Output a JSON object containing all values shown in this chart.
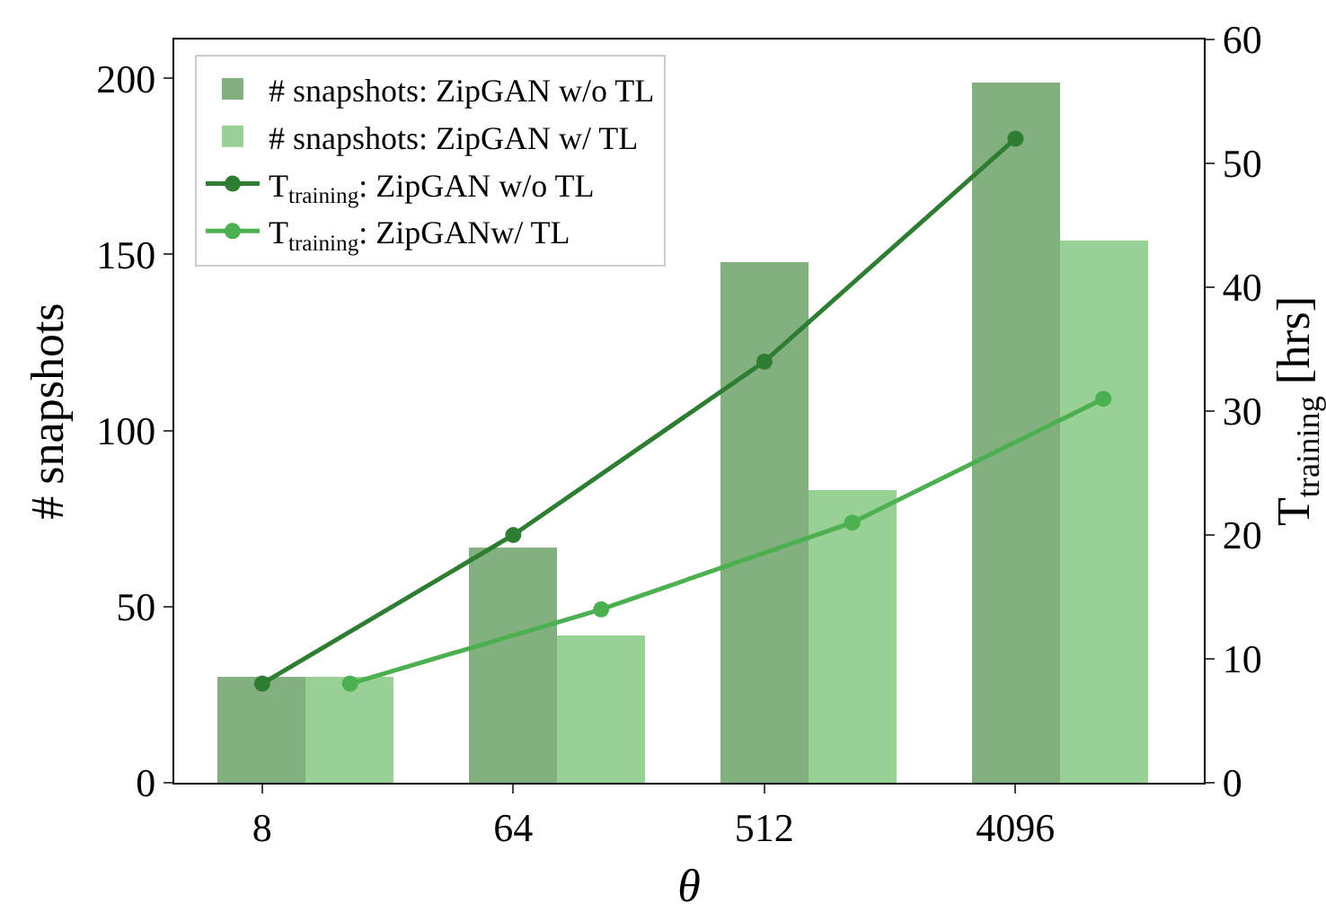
{
  "chart_data": {
    "type": "bar",
    "xlabel": "θ",
    "ylabel": "# snapshots",
    "y2label": "T$_{training}$ [hrs]",
    "categories": [
      "8",
      "64",
      "512",
      "4096"
    ],
    "series": [
      {
        "name": "# snapshots: ZipGAN w/o TL",
        "color": "#82b07f",
        "values": [
          30,
          67,
          148,
          199
        ]
      },
      {
        "name": "# snapshots: ZipGAN w/ TL",
        "color": "#98d095",
        "values": [
          30,
          42,
          83,
          154
        ]
      },
      {
        "name": "T$_{training}$: ZipGAN w/o TL",
        "type": "line",
        "axis": "y2",
        "color": "#2e7d32",
        "values": [
          8,
          20,
          34,
          52
        ]
      },
      {
        "name": "T$_{training}$: ZipGANw/ TL",
        "type": "line",
        "axis": "y2",
        "color": "#4caf50",
        "values": [
          8,
          14,
          21,
          31
        ]
      }
    ],
    "ylim": [
      0,
      211
    ],
    "yticks": [
      0,
      50,
      100,
      150,
      200
    ],
    "y2lim": [
      0,
      60
    ],
    "y2ticks": [
      0,
      10,
      20,
      30,
      40,
      50,
      60
    ],
    "marker": "circle",
    "line_style": "solid",
    "legend": "top left",
    "grid": false
  }
}
